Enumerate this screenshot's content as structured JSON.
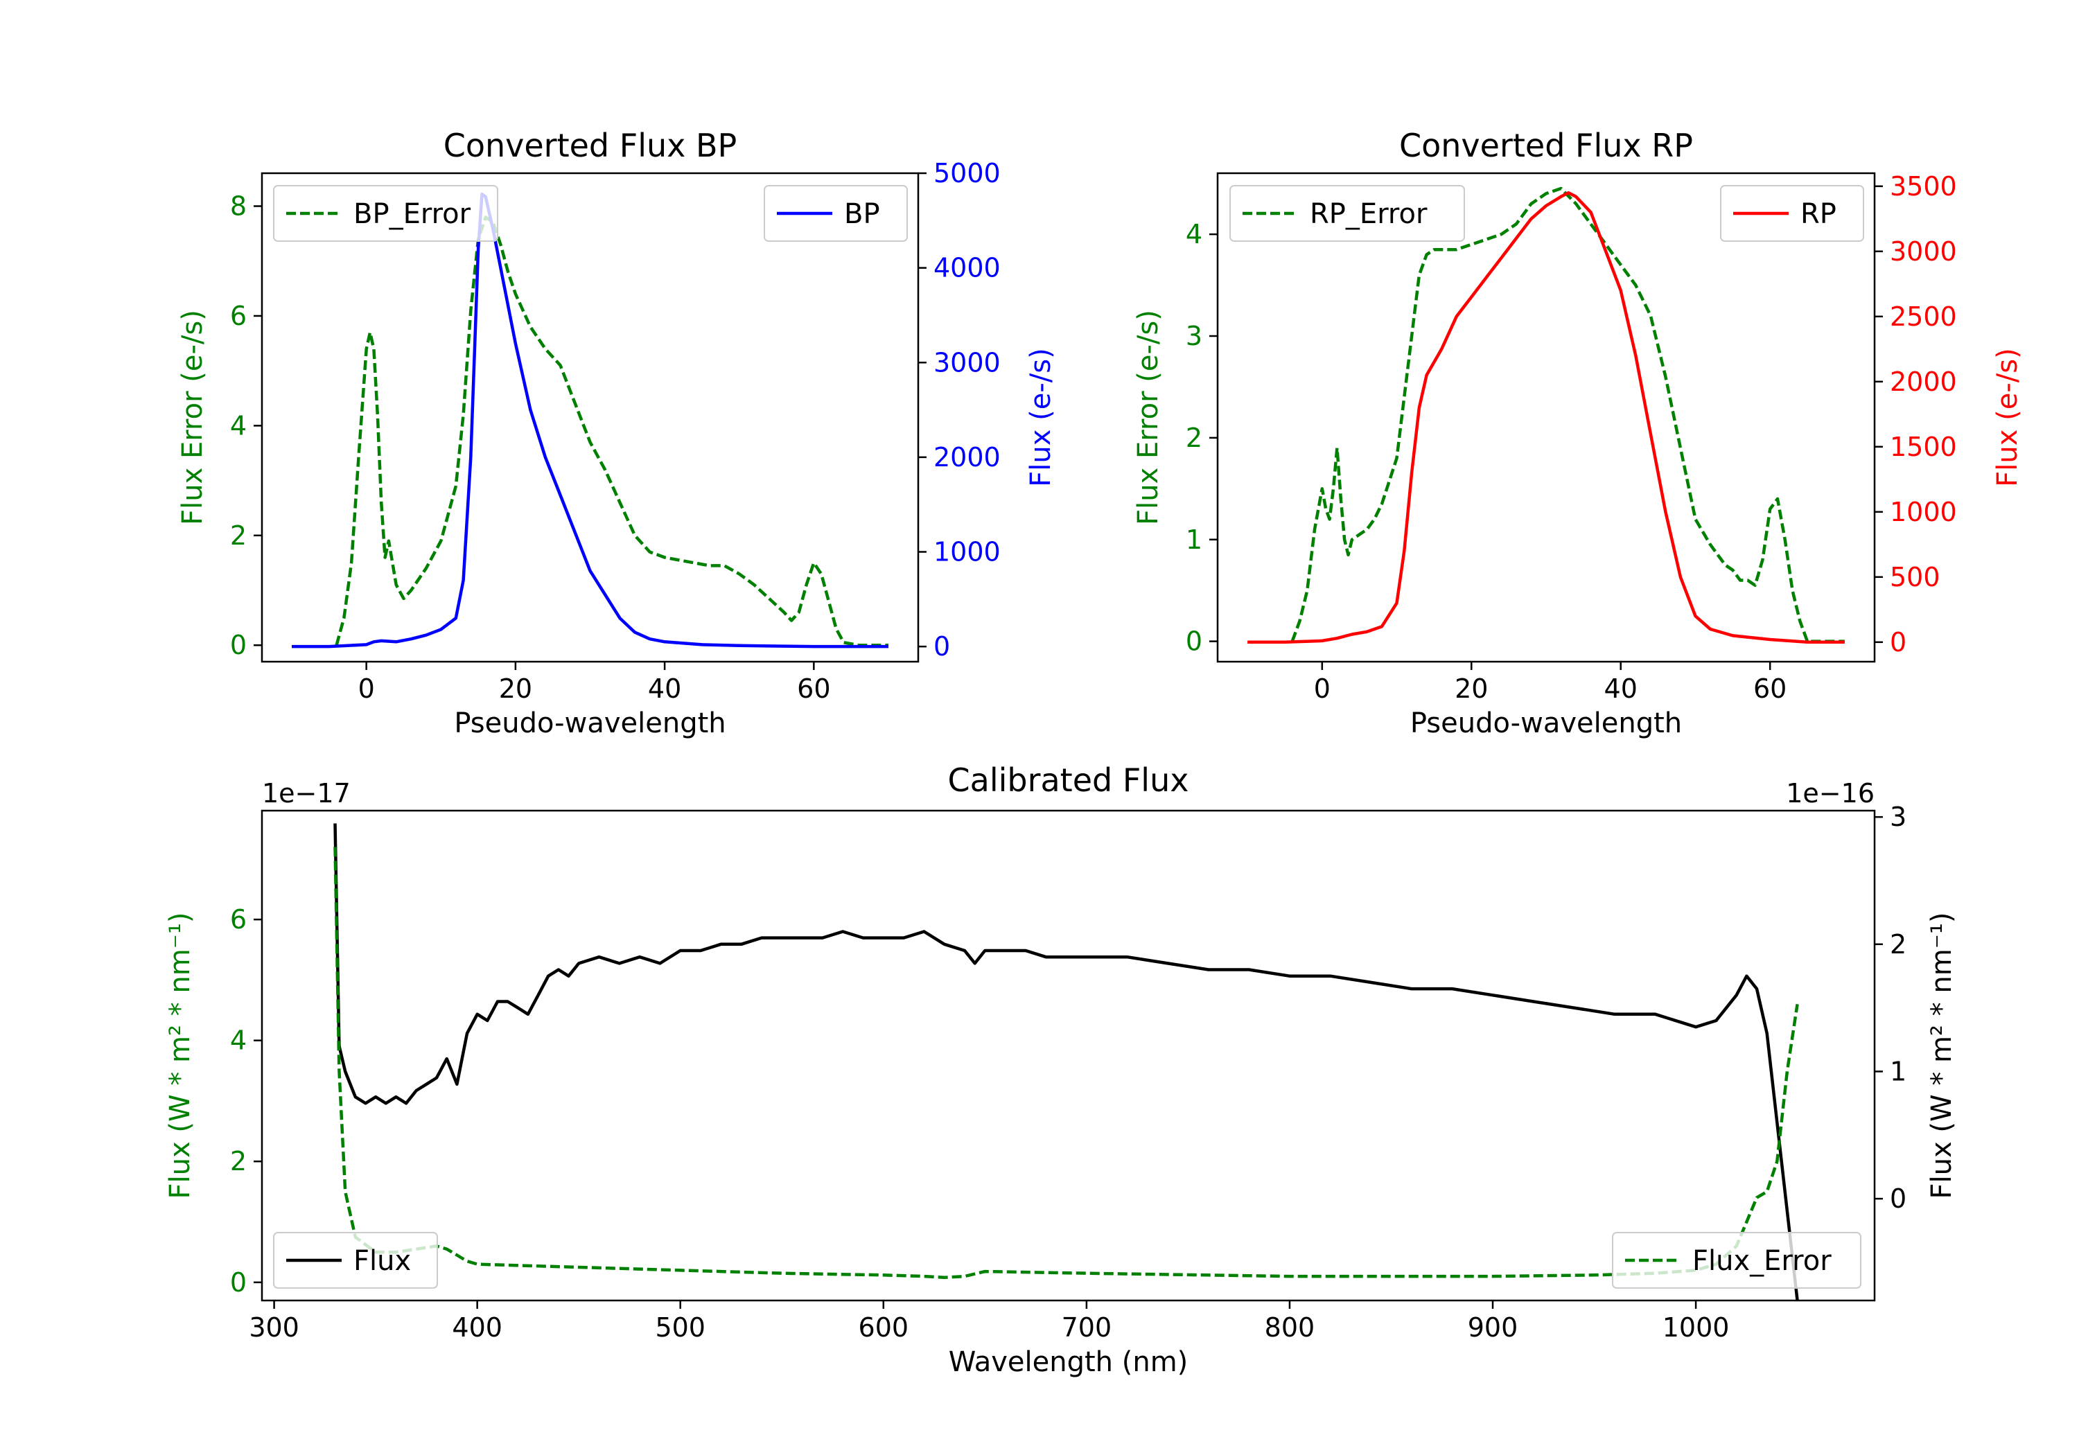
{
  "chart_data": [
    {
      "type": "line",
      "title": "Converted Flux BP",
      "xlabel": "Pseudo-wavelength",
      "xlim": [
        -14,
        74
      ],
      "xticks": [
        0,
        20,
        40,
        60
      ],
      "left_axis": {
        "label": "Flux Error (e-/s)",
        "color": "#008000",
        "ylim": [
          -0.3,
          8.6
        ],
        "ticks": [
          0,
          2,
          4,
          6,
          8
        ]
      },
      "right_axis": {
        "label": "Flux (e-/s)",
        "color": "#0000ff",
        "ylim": [
          -160,
          5000
        ],
        "ticks": [
          0,
          1000,
          2000,
          3000,
          4000,
          5000
        ]
      },
      "series": [
        {
          "name": "BP_Error",
          "axis": "left",
          "style": "dashed",
          "color": "#008000",
          "x": [
            -4,
            -3,
            -2,
            -1,
            0,
            0.5,
            1,
            1.5,
            2,
            2.5,
            3,
            3.5,
            4,
            5,
            6,
            7,
            8,
            10,
            12,
            13,
            14,
            15,
            16,
            17,
            18,
            19,
            20,
            22,
            24,
            26,
            28,
            30,
            32,
            34,
            36,
            38,
            40,
            42,
            44,
            46,
            48,
            50,
            52,
            54,
            56,
            57,
            58,
            59,
            60,
            61,
            62,
            63,
            64,
            66,
            68,
            70
          ],
          "y": [
            0.0,
            0.5,
            1.5,
            3.5,
            5.4,
            5.7,
            5.4,
            4.2,
            2.6,
            1.6,
            1.9,
            1.5,
            1.1,
            0.85,
            1.0,
            1.2,
            1.4,
            1.9,
            2.9,
            4.2,
            6.1,
            7.4,
            7.8,
            7.7,
            7.3,
            6.8,
            6.4,
            5.8,
            5.4,
            5.1,
            4.4,
            3.7,
            3.2,
            2.6,
            2.0,
            1.7,
            1.6,
            1.55,
            1.5,
            1.45,
            1.45,
            1.3,
            1.1,
            0.85,
            0.6,
            0.45,
            0.6,
            1.1,
            1.5,
            1.3,
            0.8,
            0.3,
            0.05,
            0.0,
            0.0,
            0.0
          ]
        },
        {
          "name": "BP",
          "axis": "right",
          "style": "solid",
          "color": "#0000ff",
          "x": [
            -10,
            -5,
            0,
            1,
            2,
            4,
            6,
            8,
            10,
            12,
            13,
            14,
            15,
            15.5,
            16,
            17,
            18,
            20,
            22,
            24,
            26,
            28,
            30,
            32,
            34,
            36,
            38,
            40,
            45,
            50,
            55,
            60,
            65,
            70
          ],
          "y": [
            0,
            0,
            20,
            50,
            60,
            50,
            80,
            120,
            180,
            300,
            700,
            2000,
            4200,
            4780,
            4750,
            4400,
            4000,
            3200,
            2500,
            2000,
            1600,
            1200,
            800,
            550,
            300,
            150,
            80,
            50,
            20,
            10,
            5,
            0,
            0,
            0
          ]
        }
      ],
      "legends": [
        {
          "entries": [
            "BP_Error"
          ],
          "position": "upper left"
        },
        {
          "entries": [
            "BP"
          ],
          "position": "upper right"
        }
      ]
    },
    {
      "type": "line",
      "title": "Converted Flux RP",
      "xlabel": "Pseudo-wavelength",
      "xlim": [
        -14,
        74
      ],
      "xticks": [
        0,
        20,
        40,
        60
      ],
      "left_axis": {
        "label": "Flux Error (e-/s)",
        "color": "#008000",
        "ylim": [
          -0.2,
          4.6
        ],
        "ticks": [
          0,
          1,
          2,
          3,
          4
        ]
      },
      "right_axis": {
        "label": "Flux (e-/s)",
        "color": "#ff0000",
        "ylim": [
          -150,
          3600
        ],
        "ticks": [
          0,
          500,
          1000,
          1500,
          2000,
          2500,
          3000,
          3500
        ]
      },
      "series": [
        {
          "name": "RP_Error",
          "axis": "left",
          "style": "dashed",
          "color": "#008000",
          "x": [
            -4,
            -3,
            -2,
            -1,
            0,
            0.5,
            1,
            1.5,
            2,
            2.5,
            3,
            3.5,
            4,
            5,
            6,
            7,
            8,
            10,
            12,
            13,
            14,
            15,
            16,
            18,
            20,
            22,
            24,
            26,
            28,
            30,
            32,
            34,
            36,
            38,
            40,
            42,
            44,
            46,
            48,
            50,
            52,
            54,
            55,
            56,
            57,
            58,
            59,
            60,
            61,
            62,
            63,
            64,
            65,
            68,
            70
          ],
          "y": [
            0.0,
            0.2,
            0.5,
            1.1,
            1.5,
            1.3,
            1.2,
            1.5,
            1.9,
            1.4,
            1.0,
            0.85,
            1.0,
            1.05,
            1.1,
            1.2,
            1.35,
            1.8,
            3.0,
            3.6,
            3.8,
            3.85,
            3.85,
            3.85,
            3.9,
            3.95,
            4.0,
            4.1,
            4.3,
            4.4,
            4.45,
            4.3,
            4.1,
            3.9,
            3.7,
            3.5,
            3.2,
            2.6,
            1.9,
            1.2,
            0.95,
            0.75,
            0.7,
            0.6,
            0.6,
            0.55,
            0.8,
            1.3,
            1.4,
            1.0,
            0.5,
            0.2,
            0.0,
            0.0,
            0.0
          ]
        },
        {
          "name": "RP",
          "axis": "right",
          "style": "solid",
          "color": "#ff0000",
          "x": [
            -10,
            -5,
            0,
            2,
            4,
            6,
            8,
            10,
            11,
            12,
            13,
            14,
            15,
            16,
            18,
            20,
            22,
            24,
            26,
            28,
            30,
            32,
            33,
            34,
            36,
            38,
            40,
            42,
            44,
            46,
            48,
            50,
            52,
            55,
            60,
            65,
            70
          ],
          "y": [
            0,
            0,
            10,
            30,
            60,
            80,
            120,
            300,
            700,
            1300,
            1800,
            2050,
            2150,
            2250,
            2500,
            2650,
            2800,
            2950,
            3100,
            3250,
            3350,
            3420,
            3450,
            3420,
            3300,
            3000,
            2700,
            2200,
            1600,
            1000,
            500,
            200,
            100,
            50,
            20,
            0,
            0
          ]
        }
      ],
      "legends": [
        {
          "entries": [
            "RP_Error"
          ],
          "position": "upper left"
        },
        {
          "entries": [
            "RP"
          ],
          "position": "upper right"
        }
      ]
    },
    {
      "type": "line",
      "title": "Calibrated Flux",
      "xlabel": "Wavelength (nm)",
      "xlim": [
        294,
        1088
      ],
      "xticks": [
        300,
        400,
        500,
        600,
        700,
        800,
        900,
        1000
      ],
      "left_axis": {
        "label": "Flux (W * m² * nm⁻¹)",
        "color": "#008000",
        "ylim": [
          -0.3,
          7.8
        ],
        "ticks": [
          0,
          2,
          4,
          6
        ],
        "offset_text": "1e−17"
      },
      "right_axis": {
        "label": "Flux (W * m² * nm⁻¹)",
        "color": "#000000",
        "ylim": [
          -0.8,
          3.05
        ],
        "ticks": [
          0,
          1,
          2,
          3
        ],
        "offset_text": "1e−16"
      },
      "series": [
        {
          "name": "Flux",
          "axis": "right",
          "style": "solid",
          "color": "#000000",
          "x": [
            330,
            332,
            335,
            340,
            345,
            350,
            355,
            360,
            365,
            370,
            375,
            380,
            385,
            390,
            395,
            400,
            405,
            410,
            415,
            420,
            425,
            430,
            435,
            440,
            445,
            450,
            460,
            470,
            480,
            490,
            500,
            510,
            520,
            530,
            540,
            550,
            560,
            570,
            580,
            590,
            600,
            610,
            620,
            630,
            640,
            645,
            650,
            655,
            660,
            670,
            680,
            690,
            700,
            720,
            740,
            760,
            780,
            800,
            820,
            840,
            860,
            880,
            900,
            920,
            940,
            960,
            980,
            1000,
            1010,
            1020,
            1025,
            1030,
            1035,
            1040,
            1050
          ],
          "y": [
            2.95,
            1.2,
            1.0,
            0.8,
            0.75,
            0.8,
            0.75,
            0.8,
            0.75,
            0.85,
            0.9,
            0.95,
            1.1,
            0.9,
            1.3,
            1.45,
            1.4,
            1.55,
            1.55,
            1.5,
            1.45,
            1.6,
            1.75,
            1.8,
            1.75,
            1.85,
            1.9,
            1.85,
            1.9,
            1.85,
            1.95,
            1.95,
            2.0,
            2.0,
            2.05,
            2.05,
            2.05,
            2.05,
            2.1,
            2.05,
            2.05,
            2.05,
            2.1,
            2.0,
            1.95,
            1.85,
            1.95,
            1.95,
            1.95,
            1.95,
            1.9,
            1.9,
            1.9,
            1.9,
            1.85,
            1.8,
            1.8,
            1.75,
            1.75,
            1.7,
            1.65,
            1.65,
            1.6,
            1.55,
            1.5,
            1.45,
            1.45,
            1.35,
            1.4,
            1.6,
            1.75,
            1.65,
            1.3,
            0.6,
            -0.8
          ]
        },
        {
          "name": "Flux_Error",
          "axis": "left",
          "style": "dashed",
          "color": "#008000",
          "x": [
            330,
            332,
            335,
            340,
            350,
            360,
            370,
            380,
            385,
            390,
            395,
            400,
            420,
            450,
            500,
            550,
            600,
            620,
            630,
            640,
            650,
            700,
            800,
            900,
            950,
            980,
            1000,
            1010,
            1020,
            1025,
            1030,
            1035,
            1040,
            1045,
            1050
          ],
          "y": [
            7.2,
            3.5,
            1.5,
            0.75,
            0.5,
            0.5,
            0.55,
            0.6,
            0.55,
            0.45,
            0.35,
            0.3,
            0.28,
            0.25,
            0.2,
            0.15,
            0.12,
            0.1,
            0.08,
            0.1,
            0.18,
            0.15,
            0.1,
            0.1,
            0.12,
            0.15,
            0.2,
            0.3,
            0.6,
            1.0,
            1.4,
            1.5,
            2.0,
            3.5,
            4.6
          ]
        }
      ],
      "legends": [
        {
          "entries": [
            "Flux"
          ],
          "position": "lower left"
        },
        {
          "entries": [
            "Flux_Error"
          ],
          "position": "lower right"
        }
      ]
    }
  ]
}
